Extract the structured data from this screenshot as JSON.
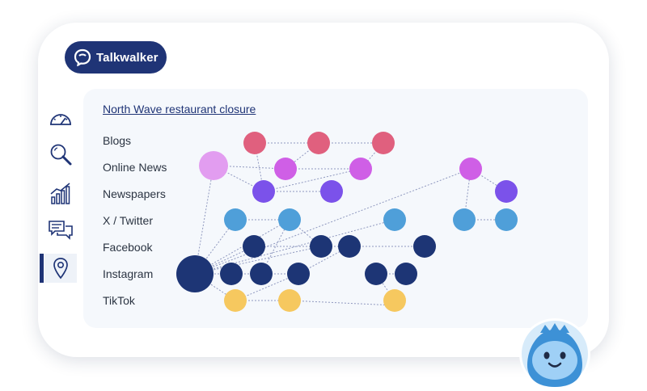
{
  "brand": {
    "name": "Talkwalker"
  },
  "sidebar": {
    "items": [
      {
        "icon": "speedometer-icon",
        "active": false
      },
      {
        "icon": "search-icon",
        "active": false
      },
      {
        "icon": "bar-chart-icon",
        "active": false
      },
      {
        "icon": "chat-bubbles-icon",
        "active": false
      },
      {
        "icon": "location-pin-icon",
        "active": true
      }
    ]
  },
  "panel": {
    "title": "North Wave restaurant closure",
    "channels": [
      "Blogs",
      "Online News",
      "Newspapers",
      "X / Twitter",
      "Facebook",
      "Instagram",
      "TikTok"
    ]
  },
  "colors": {
    "blogs": "#e0607e",
    "online_news": "#cf5fe6",
    "newspapers": "#7b52ea",
    "x_twitter": "#4f9fd9",
    "facebook": "#1d3575",
    "instagram": "#1d3575",
    "tiktok": "#f6c85f",
    "online_news_source": "#e29df0",
    "link": "#8f98bf",
    "brand": "#1f3476"
  }
}
